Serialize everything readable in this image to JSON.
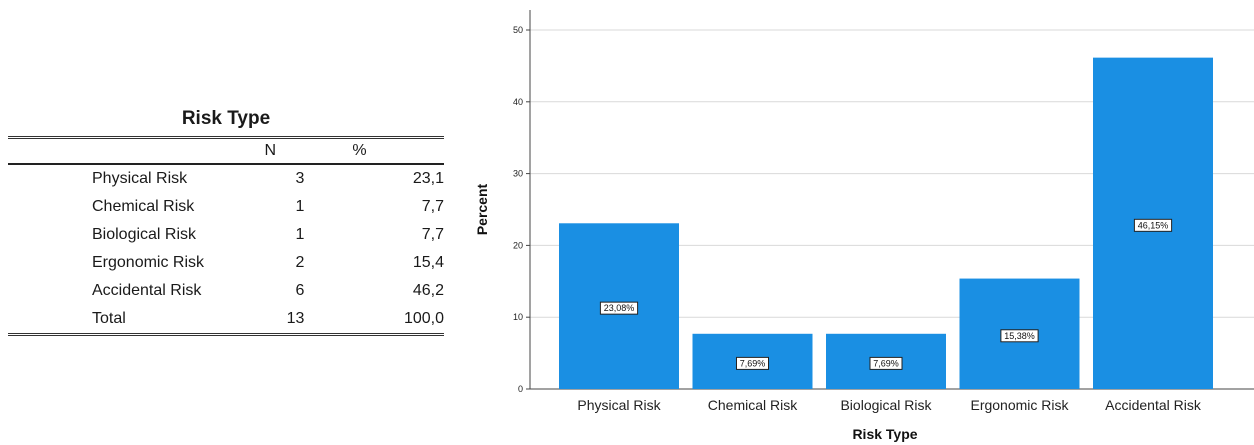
{
  "table": {
    "title": "Risk Type",
    "headers": [
      "",
      "N",
      "%"
    ],
    "rows": [
      {
        "label": "Physical Risk",
        "n": "3",
        "pct": "23,1"
      },
      {
        "label": "Chemical Risk",
        "n": "1",
        "pct": "7,7"
      },
      {
        "label": "Biological Risk",
        "n": "1",
        "pct": "7,7"
      },
      {
        "label": "Ergonomic Risk",
        "n": "2",
        "pct": "15,4"
      },
      {
        "label": "Accidental Risk",
        "n": "6",
        "pct": "46,2"
      },
      {
        "label": "Total",
        "n": "13",
        "pct": "100,0"
      }
    ]
  },
  "chart_data": {
    "type": "bar",
    "categories": [
      "Physical Risk",
      "Chemical Risk",
      "Biological Risk",
      "Ergonomic Risk",
      "Accidental Risk"
    ],
    "values": [
      23.08,
      7.69,
      7.69,
      15.38,
      46.15
    ],
    "data_labels": [
      "23,08%",
      "7,69%",
      "7,69%",
      "15,38%",
      "46,15%"
    ],
    "title": "",
    "xlabel": "Risk Type",
    "ylabel": "Percent",
    "ylim": [
      0,
      50
    ],
    "yticks": [
      0,
      10,
      20,
      30,
      40,
      50
    ],
    "grid": true,
    "bar_color": "#1a8fe3",
    "grid_color": "#d9d9d9"
  }
}
